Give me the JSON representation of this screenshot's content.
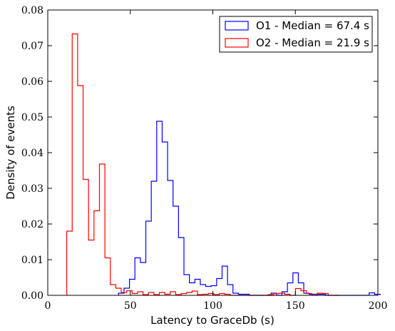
{
  "chart_data": {
    "type": "step-histogram",
    "xlabel": "Latency to GraceDb (s)",
    "ylabel": "Density of events",
    "xlim": [
      0,
      200
    ],
    "ylim": [
      0,
      0.08
    ],
    "x_ticks": [
      0,
      50,
      100,
      150,
      200
    ],
    "x_tick_labels": [
      "0",
      "50",
      "100",
      "150",
      "200"
    ],
    "y_ticks": [
      0,
      0.01,
      0.02,
      0.03,
      0.04,
      0.05,
      0.06,
      0.07,
      0.08
    ],
    "y_tick_labels": [
      "0.00",
      "0.01",
      "0.02",
      "0.03",
      "0.04",
      "0.05",
      "0.06",
      "0.07",
      "0.08"
    ],
    "grid": false,
    "legend_position": "top-right",
    "bin_width": 3.3,
    "series": [
      {
        "name": "O1 - Median = 67.4 s",
        "color": "#0000ff",
        "x_start": 42.9,
        "values": [
          0.0006,
          0.002,
          0.0045,
          0.0105,
          0.0092,
          0.0208,
          0.032,
          0.0488,
          0.043,
          0.0322,
          0.025,
          0.0162,
          0.0058,
          0.0035,
          0.0045,
          0.003,
          0.0025,
          0.0027,
          0.0047,
          0.0082,
          0.003,
          0.0006,
          0.0003,
          0.0003,
          0,
          0,
          0,
          0,
          0.0006,
          0.0,
          0.001,
          0.0035,
          0.0063,
          0.0035,
          0.0006,
          0.0003,
          0.0003,
          0.0003,
          0.0,
          0.0,
          0.0,
          0.0,
          0.0,
          0.0,
          0.0,
          0.0,
          0.0007,
          0.0003
        ]
      },
      {
        "name": "O2 - Median = 21.9 s",
        "color": "#ff0000",
        "x_start": 11.5,
        "values": [
          0.018,
          0.0733,
          0.0588,
          0.0325,
          0.0155,
          0.0237,
          0.0368,
          0.0105,
          0.003,
          0.002,
          0.0008,
          0.0013,
          0.0005,
          0.001,
          0.0002,
          0.0008,
          0.0002,
          0.0008,
          0.0003,
          0.001,
          0.0002,
          0.0005,
          0.0008,
          0.0012,
          0.0002,
          0.0003,
          0.0005,
          0.0002,
          0.0005,
          0.0003,
          0.0,
          0.0,
          0.0,
          0.0,
          0.0,
          0.0,
          0.0,
          0.0002,
          0.0005,
          0.0006,
          0.0003,
          0.0,
          0.0019,
          0.0013,
          0.0005,
          0.0,
          0.0006,
          0.0005,
          0.0,
          0.0
        ]
      }
    ]
  }
}
